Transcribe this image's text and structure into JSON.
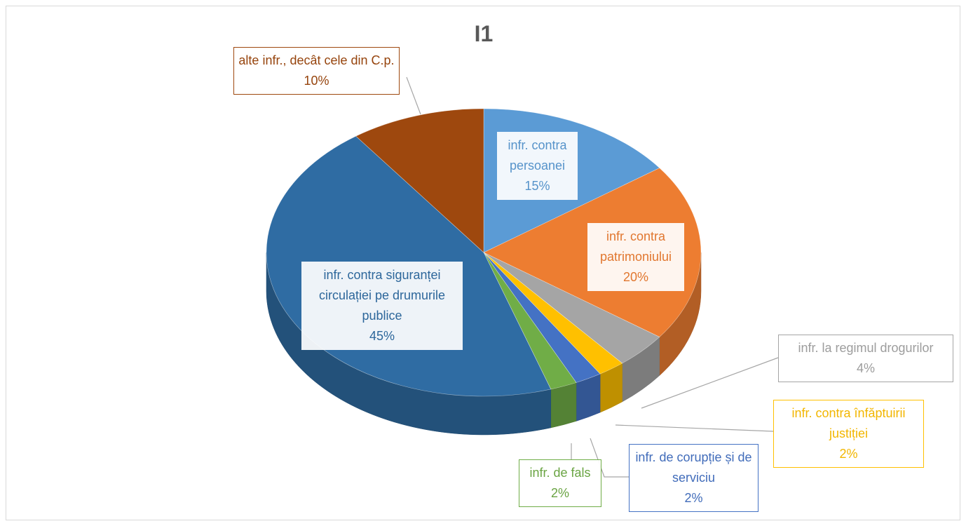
{
  "chart_data": {
    "type": "pie",
    "title": "I1",
    "categories": [
      "infr. contra persoanei",
      "infr. contra patrimoniului",
      "infr. la regimul drogurilor",
      "infr. contra înfăptuirii justiției",
      "infr. de corupție și de serviciu",
      "infr. de fals",
      "infr. contra siguranței circulației pe drumurile publice",
      "alte infr., decât cele din C.p."
    ],
    "values": [
      15,
      20,
      4,
      2,
      2,
      2,
      45,
      10
    ],
    "value_labels": [
      "15%",
      "20%",
      "4%",
      "2%",
      "2%",
      "2%",
      "45%",
      "10%"
    ],
    "colors": [
      "#5b9bd5",
      "#ed7d31",
      "#a5a5a5",
      "#ffc000",
      "#4472c4",
      "#70ad47",
      "#2f6ca3",
      "#9e480e"
    ]
  }
}
